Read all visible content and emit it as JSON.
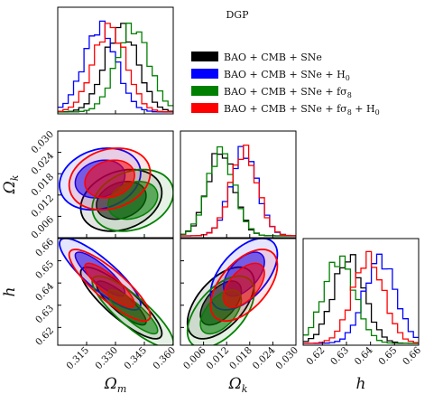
{
  "chart_data": {
    "type": "corner",
    "title": "DGP",
    "parameters": [
      {
        "key": "om",
        "label_main": "Ω",
        "label_sub": "m",
        "range": [
          0.3,
          0.36
        ],
        "ticks": [
          "0.315",
          "0.330",
          "0.345",
          "0.360"
        ]
      },
      {
        "key": "ok",
        "label_main": "Ω",
        "label_sub": "k",
        "range": [
          0.0,
          0.03
        ],
        "ticks": [
          "0.006",
          "0.012",
          "0.018",
          "0.024",
          "0.030"
        ]
      },
      {
        "key": "h",
        "label_main": "h",
        "label_sub": "",
        "range": [
          0.612,
          0.66
        ],
        "ticks": [
          "0.62",
          "0.63",
          "0.64",
          "0.65",
          "0.66"
        ]
      }
    ],
    "ok_ylabel_ticks": [
      "0.006",
      "0.012",
      "0.018",
      "0.024",
      "0.030"
    ],
    "h_ylabel_ticks": [
      "0.62",
      "0.63",
      "0.64",
      "0.65",
      "0.66"
    ],
    "series": [
      {
        "name": "BAO + CMB + SNe",
        "name_parts": [
          "BAO + CMB + SNe",
          "",
          "",
          ""
        ],
        "color": "#000000",
        "mean": {
          "om": 0.333,
          "ok": 0.0105,
          "h": 0.631
        },
        "sigma": {
          "om": 0.0085,
          "ok": 0.0035,
          "h": 0.0065
        },
        "corr": {
          "om_ok": 0.25,
          "om_h": -0.85,
          "ok_h": 0.55
        }
      },
      {
        "name": "BAO + CMB + SNe + H0",
        "name_parts": [
          "BAO + CMB + SNe + H",
          "0",
          "",
          ""
        ],
        "color": "#0000ff",
        "mean": {
          "om": 0.322,
          "ok": 0.0165,
          "h": 0.644
        },
        "sigma": {
          "om": 0.0085,
          "ok": 0.0035,
          "h": 0.0065
        },
        "corr": {
          "om_ok": 0.2,
          "om_h": -0.85,
          "ok_h": 0.55
        }
      },
      {
        "name": "BAO + CMB + SNe + fσ8",
        "name_parts": [
          "BAO + CMB + SNe + fσ",
          "8",
          "",
          ""
        ],
        "color": "#008000",
        "mean": {
          "om": 0.339,
          "ok": 0.0105,
          "h": 0.627
        },
        "sigma": {
          "om": 0.0085,
          "ok": 0.0035,
          "h": 0.0065
        },
        "corr": {
          "om_ok": 0.25,
          "om_h": -0.85,
          "ok_h": 0.55
        }
      },
      {
        "name": "BAO + CMB + SNe + fσ8 + H0",
        "name_parts": [
          "BAO + CMB + SNe + fσ",
          "8",
          " + H",
          "0"
        ],
        "color": "#ff0000",
        "mean": {
          "om": 0.327,
          "ok": 0.0165,
          "h": 0.639
        },
        "sigma": {
          "om": 0.0085,
          "ok": 0.0035,
          "h": 0.0065
        },
        "corr": {
          "om_ok": 0.2,
          "om_h": -0.85,
          "ok_h": 0.55
        }
      }
    ],
    "contour_levels_sigma": [
      1,
      2
    ],
    "grid": false,
    "legend_position": "upper-right"
  }
}
